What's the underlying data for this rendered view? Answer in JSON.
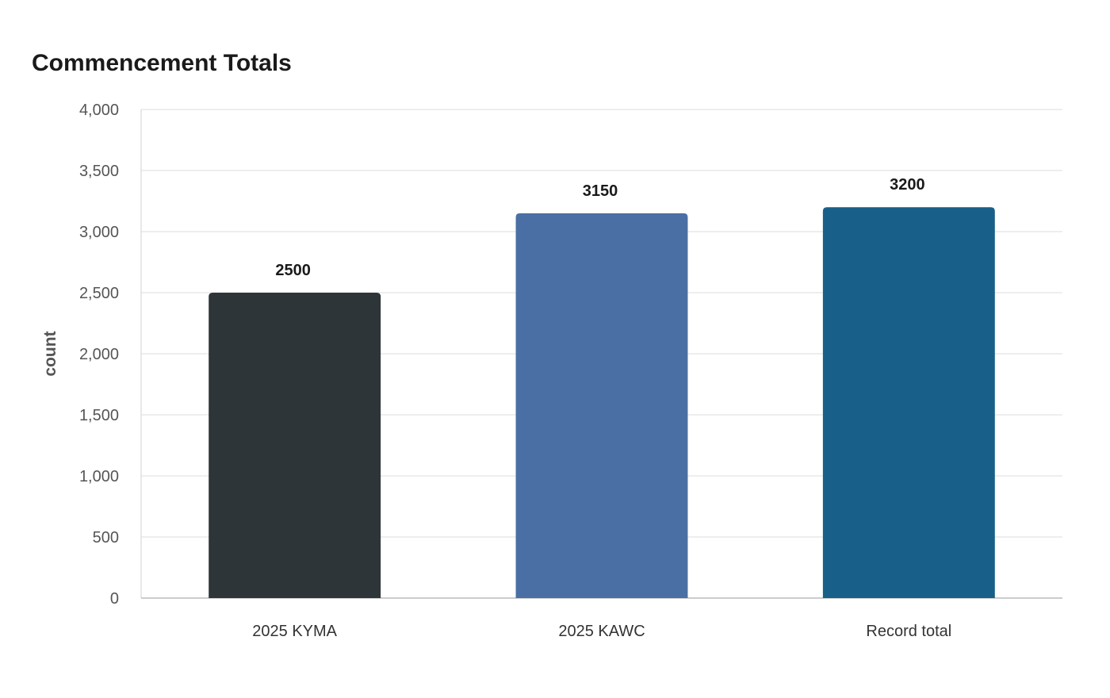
{
  "chart_data": {
    "type": "bar",
    "title": "Commencement Totals",
    "xlabel": "",
    "ylabel": "count",
    "categories": [
      "2025 KYMA",
      "2025 KAWC",
      "Record total"
    ],
    "values": [
      2500,
      3150,
      3200
    ],
    "data_labels": [
      "2500",
      "3150",
      "3200"
    ],
    "colors": [
      "#2e3538",
      "#4a6fa5",
      "#186089"
    ],
    "ylim": [
      0,
      4000
    ],
    "yticks": [
      0,
      500,
      1000,
      1500,
      2000,
      2500,
      3000,
      3500,
      4000
    ],
    "ytick_labels": [
      "0",
      "500",
      "1,000",
      "1,500",
      "2,000",
      "2,500",
      "3,000",
      "3,500",
      "4,000"
    ],
    "grid": true,
    "legend": "none"
  }
}
